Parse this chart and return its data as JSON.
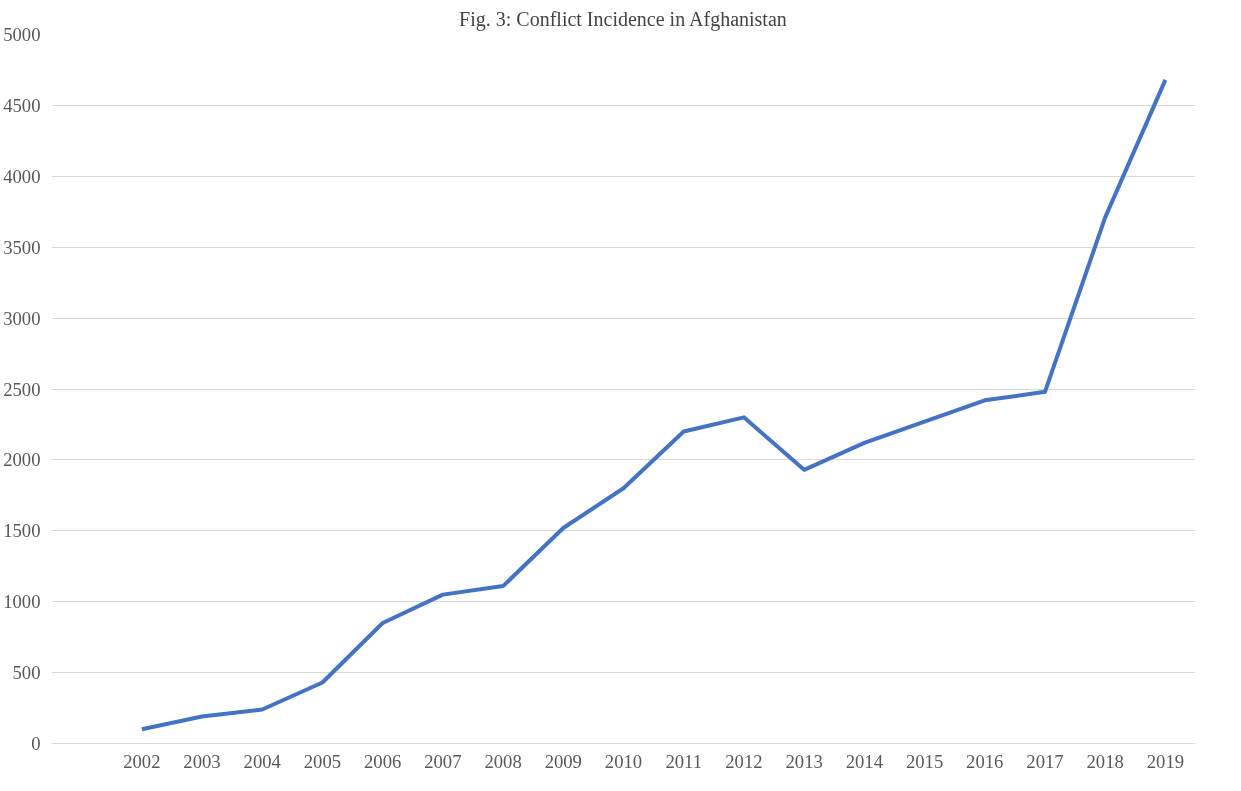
{
  "chart_data": {
    "type": "line",
    "title": "Fig. 3: Conflict Incidence in Afghanistan",
    "categories": [
      null,
      "2002",
      "2003",
      "2004",
      "2005",
      "2006",
      "2007",
      "2008",
      "2009",
      "2010",
      "2011",
      "2012",
      "2013",
      "2014",
      "2015",
      "2016",
      "2017",
      "2018",
      "2019"
    ],
    "series": [
      {
        "color": "#4472c4",
        "values": [
          null,
          100,
          190,
          240,
          430,
          850,
          1050,
          1110,
          1520,
          1800,
          2200,
          2300,
          1930,
          2120,
          2270,
          2420,
          2480,
          3710,
          4680
        ]
      }
    ],
    "ylim": [
      0,
      5000
    ],
    "yticks": [
      0,
      500,
      1000,
      1500,
      2000,
      2500,
      3000,
      3500,
      4000,
      4500,
      5000
    ],
    "grid": "y",
    "marker": "none",
    "line_style": "solid"
  }
}
